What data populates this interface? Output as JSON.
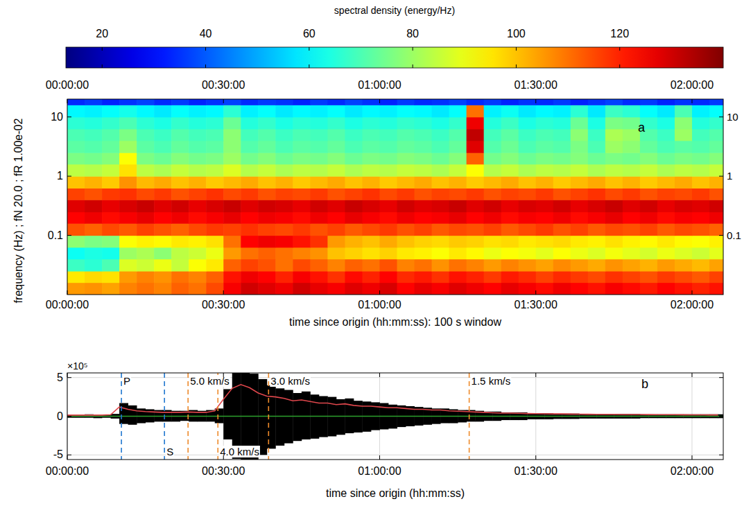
{
  "chart_data": [
    {
      "type": "heatmap",
      "panel": "a",
      "x_label": "time since origin (hh:mm:ss): 100 s window",
      "y_label": "frequency (Hz) ; fN 20.0 ; fR 1.00e-02",
      "log": "y",
      "color": "jet",
      "xlim": [
        0,
        7560
      ],
      "ylim": [
        0.01,
        20
      ],
      "xticks": [
        {
          "value": 0,
          "label": "00:00:00"
        },
        {
          "value": 1800,
          "label": "00:30:00"
        },
        {
          "value": 3600,
          "label": "01:00:00"
        },
        {
          "value": 5400,
          "label": "01:30:00"
        },
        {
          "value": 7200,
          "label": "02:00:00"
        }
      ],
      "yticks": [
        0.1,
        1,
        10
      ],
      "colorbar": {
        "label": "spectral density (energy/Hz)",
        "range": [
          13,
          140
        ],
        "ticks": [
          20,
          40,
          60,
          80,
          100,
          120
        ]
      },
      "x_edges": [
        0,
        200,
        400,
        600,
        800,
        1000,
        1200,
        1400,
        1600,
        1800,
        2000,
        2200,
        2400,
        2600,
        2800,
        3000,
        3200,
        3400,
        3600,
        3800,
        4000,
        4200,
        4400,
        4600,
        4800,
        5000,
        5200,
        5400,
        5600,
        5800,
        6000,
        6200,
        6400,
        6600,
        6800,
        7000,
        7200,
        7400,
        7600
      ],
      "y_edges": [
        0.01,
        0.016,
        0.025,
        0.04,
        0.063,
        0.1,
        0.16,
        0.25,
        0.4,
        0.63,
        1,
        1.6,
        2.5,
        4,
        6.3,
        10,
        16,
        20
      ],
      "values": [
        [
          105,
          106,
          104,
          108,
          110,
          108,
          112,
          110,
          115,
          125,
          130,
          128,
          126,
          130,
          127,
          125,
          128,
          126,
          129,
          124,
          127,
          125,
          128,
          126,
          124,
          127,
          125,
          123,
          126,
          124,
          122,
          125,
          123,
          121,
          124,
          122,
          120,
          122
        ],
        [
          95,
          97,
          96,
          105,
          108,
          106,
          110,
          108,
          112,
          122,
          126,
          124,
          120,
          125,
          122,
          118,
          123,
          120,
          124,
          119,
          121,
          118,
          122,
          120,
          117,
          121,
          119,
          116,
          119,
          117,
          115,
          118,
          116,
          114,
          117,
          115,
          113,
          116
        ],
        [
          68,
          66,
          70,
          88,
          86,
          90,
          85,
          92,
          95,
          112,
          116,
          114,
          110,
          115,
          112,
          108,
          112,
          110,
          114,
          108,
          110,
          106,
          110,
          108,
          105,
          108,
          106,
          104,
          107,
          105,
          103,
          106,
          104,
          102,
          105,
          103,
          101,
          104
        ],
        [
          62,
          64,
          63,
          80,
          82,
          78,
          84,
          86,
          90,
          105,
          110,
          112,
          110,
          108,
          106,
          100,
          98,
          96,
          98,
          95,
          94,
          92,
          95,
          93,
          90,
          92,
          91,
          89,
          92,
          90,
          88,
          91,
          89,
          87,
          90,
          88,
          86,
          89
        ],
        [
          78,
          76,
          77,
          92,
          94,
          93,
          95,
          94,
          96,
          110,
          124,
          126,
          125,
          122,
          118,
          105,
          102,
          100,
          103,
          100,
          98,
          97,
          99,
          98,
          96,
          97,
          95,
          96,
          97,
          95,
          94,
          96,
          94,
          93,
          95,
          93,
          92,
          94
        ],
        [
          114,
          112,
          115,
          113,
          116,
          114,
          112,
          115,
          117,
          116,
          118,
          116,
          115,
          117,
          114,
          116,
          113,
          115,
          117,
          114,
          116,
          113,
          115,
          114,
          116,
          113,
          115,
          117,
          114,
          116,
          113,
          115,
          114,
          116,
          113,
          115,
          114,
          112
        ],
        [
          124,
          126,
          123,
          125,
          127,
          124,
          126,
          123,
          125,
          127,
          124,
          126,
          125,
          123,
          126,
          124,
          127,
          125,
          123,
          126,
          124,
          125,
          127,
          124,
          126,
          123,
          125,
          124,
          126,
          123,
          125,
          127,
          124,
          126,
          123,
          125,
          124,
          126
        ],
        [
          128,
          130,
          127,
          129,
          131,
          128,
          130,
          127,
          129,
          131,
          128,
          130,
          129,
          127,
          130,
          128,
          131,
          129,
          127,
          130,
          128,
          129,
          131,
          128,
          130,
          127,
          129,
          128,
          130,
          127,
          129,
          131,
          128,
          130,
          127,
          129,
          128,
          130
        ],
        [
          116,
          114,
          117,
          118,
          115,
          117,
          114,
          116,
          118,
          115,
          117,
          114,
          116,
          115,
          117,
          114,
          116,
          118,
          115,
          117,
          114,
          116,
          115,
          117,
          114,
          116,
          115,
          117,
          114,
          116,
          118,
          115,
          117,
          114,
          116,
          115,
          117,
          114
        ],
        [
          100,
          102,
          99,
          106,
          101,
          103,
          100,
          102,
          99,
          101,
          103,
          100,
          102,
          99,
          101,
          103,
          100,
          102,
          99,
          101,
          103,
          100,
          102,
          99,
          101,
          103,
          100,
          102,
          99,
          101,
          103,
          100,
          102,
          99,
          101,
          103,
          100,
          102
        ],
        [
          84,
          83,
          85,
          96,
          84,
          82,
          85,
          83,
          84,
          88,
          83,
          85,
          82,
          84,
          83,
          85,
          82,
          84,
          83,
          85,
          84,
          82,
          85,
          92,
          83,
          85,
          82,
          84,
          83,
          85,
          82,
          84,
          83,
          85,
          82,
          84,
          83,
          85
        ],
        [
          76,
          75,
          77,
          92,
          76,
          74,
          77,
          75,
          76,
          80,
          75,
          77,
          74,
          76,
          75,
          77,
          74,
          76,
          75,
          77,
          76,
          74,
          77,
          112,
          75,
          77,
          74,
          76,
          75,
          77,
          74,
          76,
          75,
          77,
          74,
          76,
          75,
          77
        ],
        [
          72,
          71,
          73,
          80,
          72,
          70,
          73,
          71,
          72,
          78,
          71,
          73,
          70,
          72,
          71,
          73,
          70,
          72,
          71,
          73,
          72,
          70,
          73,
          128,
          71,
          74,
          70,
          72,
          71,
          76,
          70,
          80,
          78,
          73,
          70,
          72,
          71,
          73
        ],
        [
          70,
          69,
          71,
          76,
          70,
          68,
          71,
          69,
          70,
          78,
          69,
          71,
          68,
          70,
          69,
          71,
          68,
          70,
          69,
          71,
          70,
          68,
          71,
          132,
          69,
          72,
          68,
          70,
          69,
          78,
          68,
          82,
          80,
          71,
          68,
          80,
          69,
          71
        ],
        [
          66,
          65,
          67,
          70,
          66,
          64,
          67,
          65,
          66,
          74,
          65,
          67,
          64,
          66,
          65,
          67,
          64,
          66,
          65,
          67,
          66,
          64,
          67,
          126,
          65,
          68,
          64,
          66,
          65,
          74,
          64,
          76,
          75,
          67,
          64,
          78,
          65,
          67
        ],
        [
          60,
          59,
          61,
          63,
          60,
          58,
          61,
          59,
          60,
          66,
          59,
          61,
          58,
          60,
          59,
          61,
          58,
          60,
          59,
          61,
          60,
          58,
          61,
          110,
          59,
          62,
          58,
          60,
          59,
          66,
          58,
          68,
          66,
          61,
          58,
          70,
          59,
          61
        ],
        [
          34,
          36,
          33,
          35,
          37,
          34,
          36,
          33,
          35,
          37,
          34,
          36,
          35,
          33,
          36,
          34,
          37,
          35,
          33,
          36,
          34,
          35,
          37,
          34,
          36,
          33,
          35,
          34,
          36,
          33,
          35,
          37,
          34,
          36,
          33,
          35,
          34,
          36
        ]
      ]
    },
    {
      "type": "line",
      "panel": "b",
      "x_label": "time since origin (hh:mm:ss)",
      "y_multiplier": "×10⁵",
      "grid": true,
      "xlim": [
        0,
        7560
      ],
      "ylim": [
        -5.6,
        5.6
      ],
      "xticks": [
        {
          "value": 0,
          "label": "00:00:00"
        },
        {
          "value": 1800,
          "label": "00:30:00"
        },
        {
          "value": 3600,
          "label": "01:00:00"
        },
        {
          "value": 5400,
          "label": "01:30:00"
        },
        {
          "value": 7200,
          "label": "02:00:00"
        }
      ],
      "yticks": [
        -5,
        0,
        5
      ],
      "x": [
        0,
        100,
        200,
        300,
        400,
        500,
        600,
        700,
        800,
        900,
        1000,
        1100,
        1200,
        1300,
        1400,
        1500,
        1600,
        1700,
        1800,
        1900,
        2000,
        2100,
        2200,
        2300,
        2400,
        2500,
        2600,
        2700,
        2800,
        2900,
        3000,
        3100,
        3200,
        3300,
        3400,
        3500,
        3600,
        3700,
        3800,
        3900,
        4000,
        4100,
        4200,
        4300,
        4400,
        4500,
        4600,
        4700,
        4800,
        4900,
        5000,
        5100,
        5200,
        5300,
        5400,
        5500,
        5600,
        5700,
        5800,
        5900,
        6000,
        6100,
        6200,
        6300,
        6400,
        6500,
        6600,
        6700,
        6800,
        6900,
        7000,
        7100,
        7200,
        7300,
        7400,
        7500
      ],
      "trace": {
        "color": "#000000",
        "max": [
          0.2,
          0.2,
          0.25,
          0.2,
          0.2,
          0.3,
          1.7,
          1.4,
          1.0,
          0.9,
          0.8,
          0.8,
          0.7,
          0.7,
          0.8,
          0.7,
          0.8,
          1.0,
          3.5,
          5.8,
          6.0,
          5.5,
          4.8,
          4.0,
          3.6,
          3.4,
          3.0,
          3.2,
          2.8,
          2.6,
          2.5,
          2.2,
          2.3,
          2.0,
          1.9,
          1.8,
          1.7,
          1.5,
          1.4,
          1.3,
          1.2,
          1.1,
          1.0,
          1.0,
          0.9,
          0.8,
          0.8,
          0.7,
          0.6,
          0.6,
          0.5,
          0.5,
          0.5,
          0.4,
          0.4,
          0.4,
          0.35,
          0.35,
          0.35,
          0.3,
          0.3,
          0.3,
          0.3,
          0.3,
          0.3,
          0.3,
          0.25,
          0.25,
          0.25,
          0.25,
          0.25,
          0.25,
          0.25,
          0.25,
          0.25,
          0.25
        ],
        "min": [
          -0.2,
          -0.2,
          -0.2,
          -0.25,
          -0.2,
          -0.3,
          -1.0,
          -1.1,
          -0.9,
          -0.8,
          -0.7,
          -0.7,
          -0.7,
          -0.6,
          -0.7,
          -0.7,
          -0.7,
          -0.9,
          -3.0,
          -5.5,
          -6.0,
          -5.8,
          -5.0,
          -4.2,
          -3.8,
          -3.5,
          -3.2,
          -3.0,
          -2.9,
          -2.7,
          -2.6,
          -2.4,
          -2.2,
          -2.1,
          -2.0,
          -1.8,
          -1.7,
          -1.6,
          -1.4,
          -1.3,
          -1.2,
          -1.1,
          -1.0,
          -0.9,
          -0.9,
          -0.8,
          -0.7,
          -0.7,
          -0.6,
          -0.6,
          -0.5,
          -0.5,
          -0.5,
          -0.4,
          -0.4,
          -0.4,
          -0.35,
          -0.35,
          -0.35,
          -0.3,
          -0.3,
          -0.3,
          -0.3,
          -0.3,
          -0.3,
          -0.3,
          -0.25,
          -0.25,
          -0.25,
          -0.25,
          -0.25,
          -0.25,
          -0.25,
          -0.25,
          -0.25,
          -0.25
        ]
      },
      "envelope": {
        "color": "#e0474c",
        "values": [
          0.15,
          0.15,
          0.15,
          0.15,
          0.15,
          0.2,
          1.2,
          0.9,
          0.7,
          0.6,
          0.55,
          0.5,
          0.5,
          0.5,
          0.55,
          0.5,
          0.5,
          0.7,
          2.2,
          3.6,
          4.1,
          3.7,
          3.0,
          2.6,
          2.5,
          2.3,
          2.0,
          2.1,
          1.9,
          1.7,
          1.7,
          1.5,
          1.6,
          1.4,
          1.3,
          1.3,
          1.2,
          1.1,
          1.1,
          1.0,
          0.9,
          0.9,
          0.8,
          0.8,
          0.7,
          0.65,
          0.6,
          0.55,
          0.5,
          0.45,
          0.4,
          0.4,
          0.38,
          0.35,
          0.33,
          0.32,
          0.3,
          0.3,
          0.28,
          0.27,
          0.26,
          0.25,
          0.25,
          0.24,
          0.23,
          0.22,
          0.22,
          0.21,
          0.2,
          0.2,
          0.2,
          0.19,
          0.18,
          0.18,
          0.17,
          0.17
        ]
      },
      "baseline": {
        "color": "#2ca02c",
        "value": 0
      },
      "markers": [
        {
          "x": 624,
          "label": "P",
          "color": "#1f77d0"
        },
        {
          "x": 1120,
          "label": "S",
          "color": "#1f77d0"
        },
        {
          "x": 1392,
          "label": "5.0 km/s",
          "color": "#ee8a2a"
        },
        {
          "x": 1736,
          "label": "4.0 km/s",
          "color": "#ee8a2a"
        },
        {
          "x": 2320,
          "label": "3.0 km/s",
          "color": "#ee8a2a"
        },
        {
          "x": 4632,
          "label": "1.5 km/s",
          "color": "#ee8a2a"
        }
      ]
    }
  ]
}
